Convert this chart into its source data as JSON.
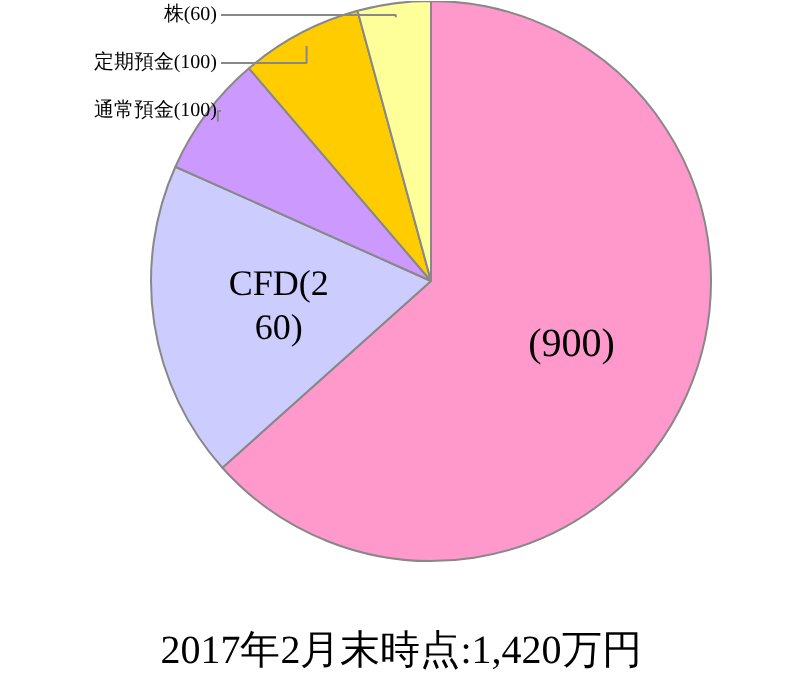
{
  "chart_data": {
    "type": "pie",
    "title": "2017年2月末時点:1,420万円",
    "categories": [
      null,
      "CFD",
      "通常預金",
      "定期預金",
      "株"
    ],
    "values": [
      900,
      260,
      100,
      100,
      60
    ],
    "value_labels": [
      "(900)",
      "(260)",
      "(100)",
      "(100)",
      "(60)"
    ],
    "colors": [
      "#ff99cc",
      "#ccccff",
      "#cc99ff",
      "#ffcc00",
      "#ffff99"
    ]
  }
}
